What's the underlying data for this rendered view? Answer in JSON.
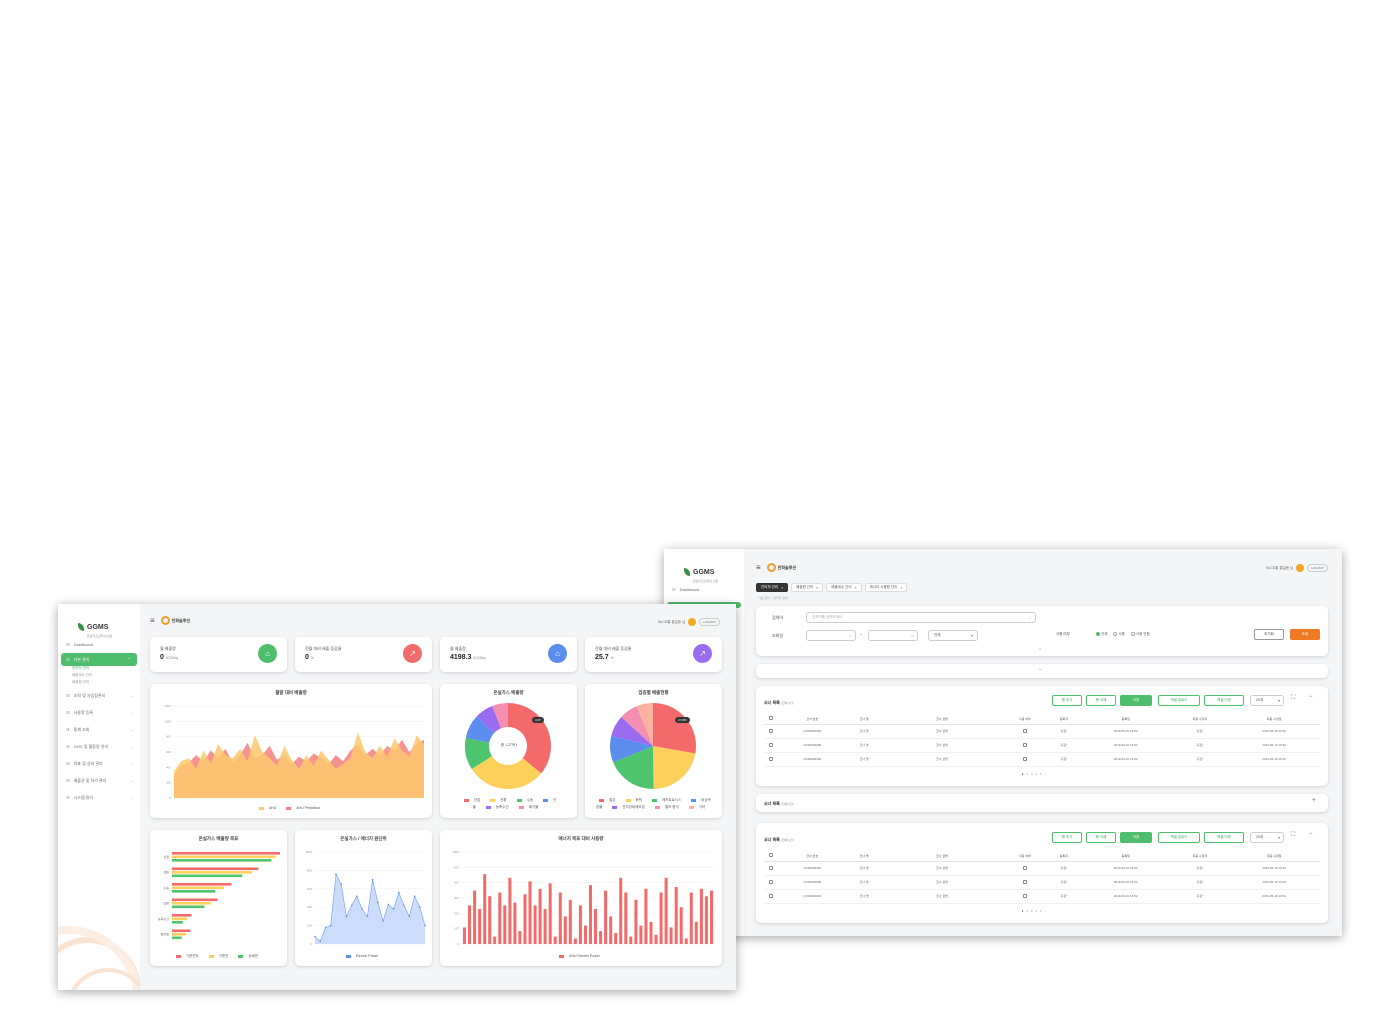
{
  "winB": {
    "logo": {
      "title": "GGMS",
      "sub": "온실가스관리시스템"
    },
    "brand": "한화솔루션",
    "user": {
      "name": "SuCD홍 홍길동 님",
      "logout": "LOGOUT"
    },
    "sidebar": {
      "dashboard": "Dashboard"
    },
    "tabs": [
      "관리자 관리",
      "배출원 관리",
      "배출계수 관리",
      "에너지 사용량 관리"
    ],
    "breadcrumb": "기준 관리 > 관리자 관리",
    "search": {
      "keyword_label": "검색어",
      "keyword_placeholder": "검색어를 입력하세요.",
      "period_label": "조회일",
      "select_all": "전체",
      "use_label": "사용 여부",
      "radio": [
        "전체",
        "사용",
        "사용 안함"
      ],
      "reset": "초기화",
      "query": "조회"
    },
    "grid1": {
      "title": "코너 목록",
      "count_pre": "(전체",
      "count": "3",
      "count_post": "건)",
      "buttons": [
        "행 추가",
        "행 삭제",
        "저장",
        "엑셀 업로드",
        "엑셀 다운"
      ],
      "page_size": "20개"
    },
    "grid2": {
      "title": "코너 목록",
      "count_pre": "(전체",
      "count": "0",
      "count_post": "건)"
    },
    "grid3": {
      "title": "코너 목록",
      "count_pre": "(전체",
      "count": "3",
      "count_post": "건)",
      "buttons": [
        "행 추가",
        "행 삭제",
        "저장",
        "엑셀 업로드",
        "엑셀 다운"
      ],
      "page_size": "20개"
    },
    "columns": [
      "코너 번호",
      "코너 명",
      "코너 설명",
      "사용 여부",
      "등록자",
      "등록일",
      "최종 수정자",
      "최종 수정일"
    ],
    "rows": [
      {
        "no": "CN00000099",
        "name": "코너 명",
        "desc": "코너 설명",
        "reg": "홍길*",
        "regdate": "2019-05-10 16:52",
        "mod": "홍길*",
        "moddate": "2019-05-10 16:52"
      },
      {
        "no": "CN00000099",
        "name": "코너 명",
        "desc": "코너 설명",
        "reg": "홍길*",
        "regdate": "2019-05-10 16:52",
        "mod": "홍길*",
        "moddate": "2019-05-10 16:52"
      },
      {
        "no": "CN00000099",
        "name": "코너 명",
        "desc": "코너 설명",
        "reg": "홍길*",
        "regdate": "2019-05-10 16:52",
        "mod": "홍길*",
        "moddate": "2019-05-10 16:52"
      }
    ],
    "pagination": [
      "1",
      "2",
      "3",
      "4",
      "5"
    ]
  },
  "winA": {
    "logo": {
      "title": "GGMS",
      "sub": "온실가스관리시스템"
    },
    "brand": "한화솔루션",
    "user": {
      "name": "SuCD홍 홍길동 님",
      "logout": "LOGOUT"
    },
    "sidebar": {
      "items": [
        "Dashboard",
        "기본 관리",
        "조직 및 사업장관리",
        "사용량 등록",
        "통계 조회",
        "GHG 및 활동량 관리",
        "목표 및 성과 관리",
        "배출권 및 허가 관리",
        "시스템 관리"
      ],
      "subs": [
        "관리자 관리",
        "배출계수 관리",
        "배출원 관리"
      ]
    },
    "kpis": [
      {
        "label": "월 배출량",
        "value": "0",
        "unit": "tCO2eq",
        "color": "#4fbe6c",
        "icon": "factory-icon"
      },
      {
        "label": "전월 대비 배출 증감율",
        "value": "0",
        "unit": "%",
        "color": "#f26b6b",
        "icon": "chart-icon"
      },
      {
        "label": "월 배출량",
        "value": "4198.3",
        "unit": "tCO2eq",
        "color": "#5b8def",
        "icon": "factory-icon"
      },
      {
        "label": "전월 대비 배출 증감율",
        "value": "25.7",
        "unit": "%",
        "color": "#9b6bf2",
        "icon": "chart-icon"
      }
    ],
    "charts": {
      "area": {
        "title": "월말 대비 배출량",
        "legend": [
          "AHU",
          "AHU Prediction"
        ]
      },
      "donut": {
        "title": "온실가스 배출량",
        "center": "총 1.27억 t",
        "tag": "3.6T",
        "legend": [
          "산업",
          "전환",
          "수송",
          "건물",
          "농축수산",
          "폐기물"
        ]
      },
      "pie": {
        "title": "업종별 배출현황",
        "tag": "27.8%",
        "legend": [
          "철강",
          "화학",
          "메카트로닉스",
          "비금속광물",
          "전자장비제조업",
          "펄프 종이",
          "기타"
        ]
      },
      "hbar": {
        "title": "온실가스 배출량 목표",
        "legend": [
          "기준연도",
          "기준안",
          "상쇄안"
        ]
      },
      "line": {
        "title": "온실가스 / 에너지 원단위",
        "legend": [
          "Electric Power"
        ]
      },
      "vbar": {
        "title": "에너지 목표 대비 사용량",
        "legend": [
          "AHU Electric Power"
        ]
      }
    }
  },
  "chart_data": [
    {
      "type": "area",
      "title": "월말 대비 배출량",
      "ylim": [
        0,
        1200
      ],
      "series": [
        {
          "name": "AHU",
          "values": [
            350,
            480,
            520,
            380,
            620,
            450,
            700,
            560,
            520,
            640,
            480,
            820,
            600,
            520,
            430,
            680,
            500,
            380,
            560,
            420,
            620,
            500,
            380,
            440,
            520,
            860,
            600,
            520,
            680,
            540,
            780,
            620,
            540,
            820,
            700
          ]
        },
        {
          "name": "AHU Prediction",
          "values": [
            300,
            420,
            460,
            560,
            480,
            620,
            520,
            640,
            460,
            560,
            720,
            520,
            560,
            680,
            500,
            560,
            440,
            540,
            480,
            580,
            520,
            440,
            560,
            480,
            620,
            700,
            560,
            640,
            560,
            680,
            620,
            760,
            600,
            700,
            760
          ]
        }
      ]
    },
    {
      "type": "pie",
      "title": "온실가스 배출량",
      "categories": [
        "산업",
        "전환",
        "수송",
        "건물",
        "농축수산",
        "폐기물"
      ],
      "values": [
        36,
        30,
        12,
        9,
        7,
        6
      ]
    },
    {
      "type": "pie",
      "title": "업종별 배출현황",
      "categories": [
        "철강",
        "화학",
        "메카트로닉스",
        "비금속광물",
        "전자장비제조업",
        "펄프 종이",
        "기타"
      ],
      "values": [
        27.8,
        22,
        19,
        10,
        8,
        7,
        6.2
      ]
    },
    {
      "type": "bar",
      "title": "온실가스 배출량 목표",
      "categories": [
        "산업",
        "전환",
        "수송",
        "건물",
        "농축수산",
        "폐기물"
      ],
      "series": [
        {
          "name": "기준연도",
          "values": [
            100,
            80,
            55,
            42,
            18,
            17
          ]
        },
        {
          "name": "기준안",
          "values": [
            96,
            74,
            48,
            36,
            14,
            13
          ]
        },
        {
          "name": "상쇄안",
          "values": [
            92,
            65,
            40,
            30,
            10,
            9
          ]
        }
      ]
    },
    {
      "type": "area",
      "title": "온실가스 / 에너지 원단위",
      "ylim": [
        0,
        1000
      ],
      "series": [
        {
          "name": "Electric Power",
          "values": [
            80,
            30,
            180,
            200,
            760,
            650,
            300,
            420,
            520,
            380,
            300,
            700,
            450,
            250,
            430,
            380,
            560,
            420,
            300,
            520,
            400,
            200
          ]
        }
      ]
    },
    {
      "type": "bar",
      "title": "에너지 목표 대비 사용량",
      "ylim": [
        0,
        1000
      ],
      "series": [
        {
          "name": "AHU Electric Power",
          "values": [
            180,
            420,
            580,
            380,
            760,
            520,
            80,
            560,
            420,
            720,
            450,
            140,
            540,
            680,
            420,
            600,
            380,
            660,
            80,
            560,
            300,
            480,
            60,
            420,
            200,
            640,
            380,
            140,
            580,
            300,
            120,
            720,
            560,
            80,
            480,
            200,
            600,
            240,
            100,
            560,
            720,
            180,
            620,
            400,
            60,
            560,
            240,
            600,
            520,
            580
          ]
        }
      ]
    }
  ]
}
